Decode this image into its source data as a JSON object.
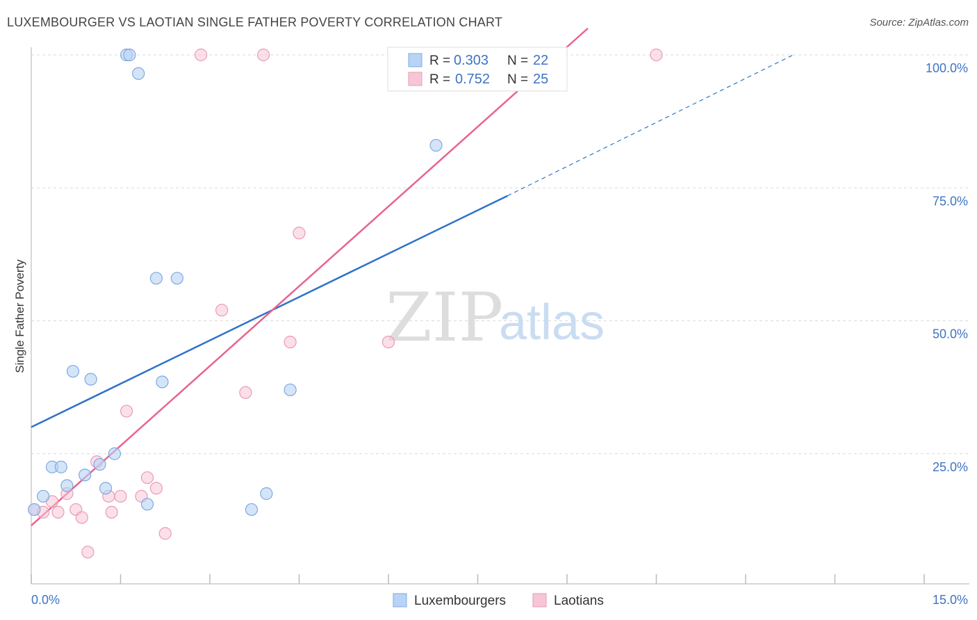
{
  "title": "LUXEMBOURGER VS LAOTIAN SINGLE FATHER POVERTY CORRELATION CHART",
  "source": "Source: ZipAtlas.com",
  "watermark": {
    "zip": "ZIP",
    "atlas": "atlas"
  },
  "colors": {
    "blue_fill": "#b8d3f5",
    "blue_stroke": "#7fa8e0",
    "blue_line": "#2f72c9",
    "pink_fill": "#f7c6d6",
    "pink_stroke": "#ea9ab5",
    "pink_line": "#e8638f",
    "tick_text": "#3d74c4",
    "grid": "#d9d9d9"
  },
  "legend": {
    "rows": [
      {
        "r_label": "R =",
        "r_value": "0.303",
        "n_label": "N =",
        "n_value": "22"
      },
      {
        "r_label": "R =",
        "r_value": "0.752",
        "n_label": "N =",
        "n_value": "25"
      }
    ]
  },
  "bottom_legend": [
    "Luxembourgers",
    "Laotians"
  ],
  "chart_data": {
    "type": "scatter",
    "title": "LUXEMBOURGER VS LAOTIAN SINGLE FATHER POVERTY CORRELATION CHART",
    "xlabel": "",
    "ylabel": "Single Father Poverty",
    "xlim": [
      0,
      15
    ],
    "ylim": [
      0,
      105
    ],
    "x_tick_labels": [
      "0.0%",
      "15.0%"
    ],
    "y_ticks": [
      25,
      50,
      75,
      100
    ],
    "y_tick_labels": [
      "25.0%",
      "50.0%",
      "75.0%",
      "100.0%"
    ],
    "grid": "horizontal dashed",
    "legend_position": "top-center",
    "series": [
      {
        "name": "Luxembourgers",
        "color": "#b8d3f5",
        "points": [
          [
            0.05,
            14.5
          ],
          [
            0.2,
            17.0
          ],
          [
            0.35,
            22.5
          ],
          [
            0.5,
            22.5
          ],
          [
            0.6,
            19.0
          ],
          [
            0.7,
            40.5
          ],
          [
            0.9,
            21.0
          ],
          [
            1.0,
            39.0
          ],
          [
            1.15,
            23.0
          ],
          [
            1.25,
            18.5
          ],
          [
            1.4,
            25.0
          ],
          [
            1.6,
            100.0
          ],
          [
            1.65,
            100.0
          ],
          [
            1.8,
            96.5
          ],
          [
            1.95,
            15.5
          ],
          [
            2.1,
            58.0
          ],
          [
            2.2,
            38.5
          ],
          [
            2.45,
            58.0
          ],
          [
            3.7,
            14.5
          ],
          [
            3.95,
            17.5
          ],
          [
            4.35,
            37.0
          ],
          [
            6.8,
            83.0
          ]
        ],
        "trend": {
          "x0": 0,
          "y0": 30.0,
          "x1": 8.0,
          "y1": 73.5,
          "dashed_to_x": 12.8,
          "dashed_to_y": 100.0
        }
      },
      {
        "name": "Laotians",
        "color": "#f7c6d6",
        "points": [
          [
            0.05,
            14.5
          ],
          [
            0.2,
            14.0
          ],
          [
            0.35,
            16.0
          ],
          [
            0.45,
            14.0
          ],
          [
            0.6,
            17.5
          ],
          [
            0.75,
            14.5
          ],
          [
            0.85,
            13.0
          ],
          [
            0.95,
            6.5
          ],
          [
            1.1,
            23.5
          ],
          [
            1.3,
            17.0
          ],
          [
            1.35,
            14.0
          ],
          [
            1.5,
            17.0
          ],
          [
            1.6,
            33.0
          ],
          [
            1.85,
            17.0
          ],
          [
            1.95,
            20.5
          ],
          [
            2.1,
            18.5
          ],
          [
            2.25,
            10.0
          ],
          [
            2.85,
            100.0
          ],
          [
            3.2,
            52.0
          ],
          [
            3.6,
            36.5
          ],
          [
            3.9,
            100.0
          ],
          [
            4.35,
            46.0
          ],
          [
            4.5,
            66.5
          ],
          [
            6.0,
            46.0
          ],
          [
            10.5,
            100.0
          ]
        ],
        "trend": {
          "x0": 0,
          "y0": 11.5,
          "x1": 9.35,
          "y1": 105.0
        }
      }
    ]
  }
}
